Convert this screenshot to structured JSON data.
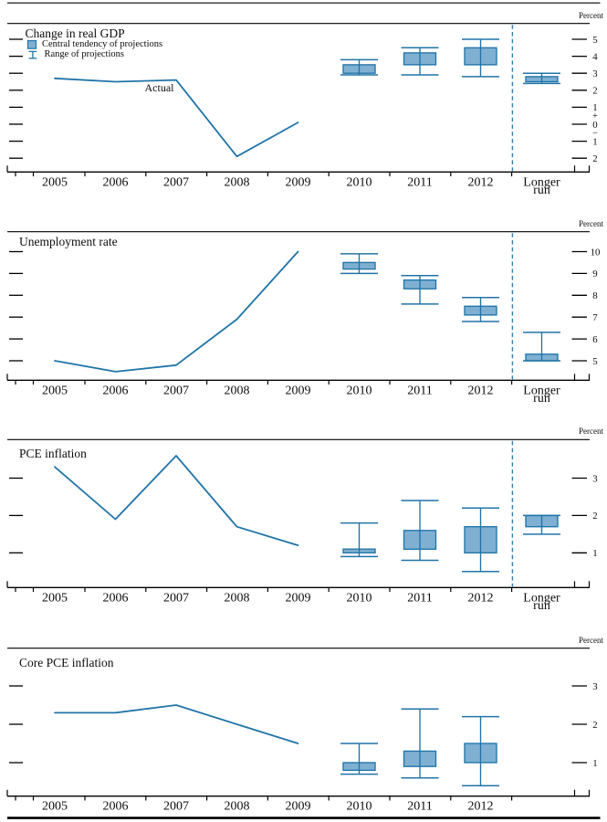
{
  "figure": {
    "legend": {
      "central_tendency": "Central tendency of projections",
      "range": "Range of projections"
    },
    "actual_annotation": "Actual",
    "longer_run_label": "Longer run"
  },
  "colors": {
    "line": "#2074a8",
    "box_fill": "#7fb0d2",
    "divider": "#2e81b2",
    "axis": "#000000",
    "text": "#0d0d0d"
  },
  "chart_data": [
    {
      "id": "real-gdp",
      "type": "line+box-whisker",
      "title": "Change in real GDP",
      "unit": "Percent",
      "categories_actual": [
        "2005",
        "2006",
        "2007",
        "2008",
        "2009"
      ],
      "actual_values": [
        2.7,
        2.5,
        2.6,
        -1.9,
        0.1
      ],
      "projections": [
        {
          "period": "2010",
          "central_tendency": [
            3.0,
            3.5
          ],
          "range": [
            2.9,
            3.8
          ]
        },
        {
          "period": "2011",
          "central_tendency": [
            3.5,
            4.2
          ],
          "range": [
            2.9,
            4.5
          ]
        },
        {
          "period": "2012",
          "central_tendency": [
            3.5,
            4.5
          ],
          "range": [
            2.8,
            5.0
          ]
        },
        {
          "period": "Longer run",
          "central_tendency": [
            2.5,
            2.8
          ],
          "range": [
            2.4,
            3.0
          ]
        }
      ],
      "ytick_values": [
        5,
        4,
        3,
        2,
        1,
        0,
        -1,
        -2
      ],
      "ytick_labels": [
        "5",
        "4",
        "3",
        "2",
        "1",
        "0",
        "1",
        "2"
      ],
      "sign_marks": true,
      "has_longer_run": true,
      "ylim": [
        -2.8,
        5.9
      ],
      "grid": false,
      "legend_position": "top-left"
    },
    {
      "id": "unemployment-rate",
      "type": "line+box-whisker",
      "title": "Unemployment rate",
      "unit": "Percent",
      "categories_actual": [
        "2005",
        "2006",
        "2007",
        "2008",
        "2009"
      ],
      "actual_values": [
        5.0,
        4.5,
        4.8,
        6.9,
        10.0
      ],
      "projections": [
        {
          "period": "2010",
          "central_tendency": [
            9.2,
            9.5
          ],
          "range": [
            9.0,
            9.9
          ]
        },
        {
          "period": "2011",
          "central_tendency": [
            8.3,
            8.7
          ],
          "range": [
            7.6,
            8.9
          ]
        },
        {
          "period": "2012",
          "central_tendency": [
            7.1,
            7.5
          ],
          "range": [
            6.8,
            7.9
          ]
        },
        {
          "period": "Longer run",
          "central_tendency": [
            5.0,
            5.3
          ],
          "range": [
            5.0,
            6.3
          ]
        }
      ],
      "ytick_values": [
        10,
        9,
        8,
        7,
        6,
        5
      ],
      "ytick_labels": [
        "10",
        "9",
        "8",
        "7",
        "6",
        "5"
      ],
      "sign_marks": false,
      "has_longer_run": true,
      "ylim": [
        4.1,
        10.9
      ],
      "grid": false
    },
    {
      "id": "pce-inflation",
      "type": "line+box-whisker",
      "title": "PCE inflation",
      "unit": "Percent",
      "categories_actual": [
        "2005",
        "2006",
        "2007",
        "2008",
        "2009"
      ],
      "actual_values": [
        3.3,
        1.9,
        3.6,
        1.7,
        1.2
      ],
      "projections": [
        {
          "period": "2010",
          "central_tendency": [
            1.0,
            1.1
          ],
          "range": [
            0.9,
            1.8
          ]
        },
        {
          "period": "2011",
          "central_tendency": [
            1.1,
            1.6
          ],
          "range": [
            0.8,
            2.4
          ]
        },
        {
          "period": "2012",
          "central_tendency": [
            1.0,
            1.7
          ],
          "range": [
            0.5,
            2.2
          ]
        },
        {
          "period": "Longer run",
          "central_tendency": [
            1.7,
            2.0
          ],
          "range": [
            1.5,
            2.0
          ]
        }
      ],
      "ytick_values": [
        3,
        2,
        1
      ],
      "ytick_labels": [
        "3",
        "2",
        "1"
      ],
      "sign_marks": false,
      "has_longer_run": true,
      "ylim": [
        0.1,
        4.0
      ],
      "grid": false
    },
    {
      "id": "core-pce-inflation",
      "type": "line+box-whisker",
      "title": "Core PCE inflation",
      "unit": "Percent",
      "categories_actual": [
        "2005",
        "2006",
        "2007",
        "2008",
        "2009"
      ],
      "actual_values": [
        2.3,
        2.3,
        2.5,
        2.0,
        1.5
      ],
      "projections": [
        {
          "period": "2010",
          "central_tendency": [
            0.8,
            1.0
          ],
          "range": [
            0.7,
            1.5
          ]
        },
        {
          "period": "2011",
          "central_tendency": [
            0.9,
            1.3
          ],
          "range": [
            0.6,
            2.4
          ]
        },
        {
          "period": "2012",
          "central_tendency": [
            1.0,
            1.5
          ],
          "range": [
            0.4,
            2.2
          ]
        }
      ],
      "ytick_values": [
        3,
        2,
        1
      ],
      "ytick_labels": [
        "3",
        "2",
        "1"
      ],
      "sign_marks": false,
      "has_longer_run": false,
      "ylim": [
        0.1,
        4.0
      ],
      "grid": false
    }
  ]
}
